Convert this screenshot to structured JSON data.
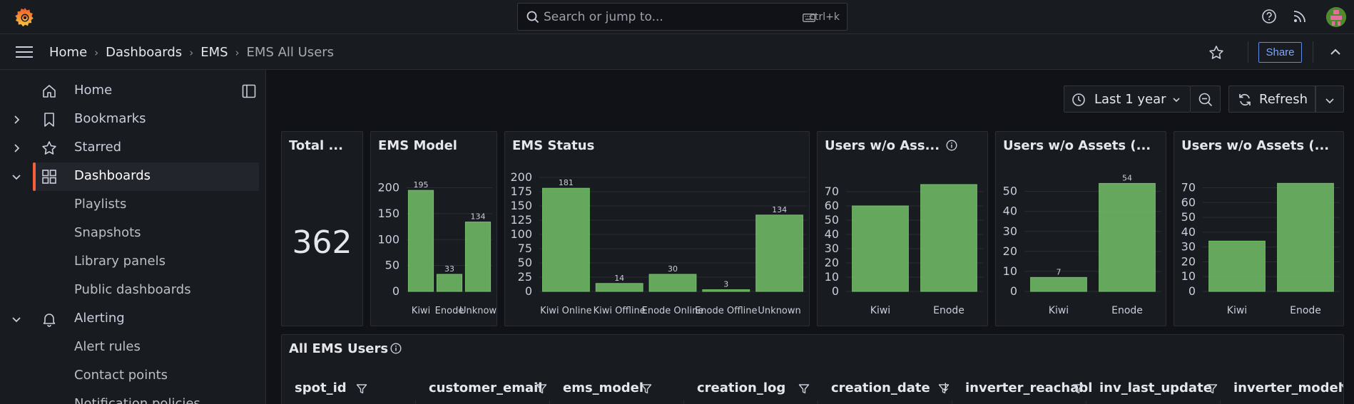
{
  "search": {
    "placeholder": "Search or jump to...",
    "shortcut": "ctrl+k"
  },
  "breadcrumb": [
    "Home",
    "Dashboards",
    "EMS",
    "EMS All Users"
  ],
  "toolbar": {
    "share_label": "Share",
    "time_range": "Last 1 year",
    "refresh_label": "Refresh"
  },
  "sidebar": {
    "items": [
      {
        "label": "Home",
        "icon": "home-icon"
      },
      {
        "label": "Bookmarks",
        "icon": "bookmark-icon"
      },
      {
        "label": "Starred",
        "icon": "star-icon"
      },
      {
        "label": "Dashboards",
        "icon": "grid-icon",
        "active": true
      },
      {
        "label": "Playlists"
      },
      {
        "label": "Snapshots"
      },
      {
        "label": "Library panels"
      },
      {
        "label": "Public dashboards"
      },
      {
        "label": "Alerting",
        "icon": "bell-icon"
      },
      {
        "label": "Alert rules"
      },
      {
        "label": "Contact points"
      },
      {
        "label": "Notification policies"
      }
    ]
  },
  "panels": {
    "total": {
      "title": "Total ...",
      "value": "362"
    },
    "ems_model": {
      "title": "EMS Model"
    },
    "ems_status": {
      "title": "EMS Status"
    },
    "users_wo_1": {
      "title": "Users w/o Ass..."
    },
    "users_wo_2": {
      "title": "Users w/o Assets (..."
    },
    "users_wo_3": {
      "title": "Users w/o Assets (..."
    }
  },
  "chart_data": [
    {
      "type": "bar",
      "title": "EMS Model",
      "categories": [
        "Kiwi",
        "Enode",
        "Unknow"
      ],
      "values": [
        195,
        33,
        134
      ],
      "value_labels": true,
      "ylim": [
        0,
        220
      ],
      "yticks": [
        0,
        50,
        100,
        150,
        200
      ],
      "bar_color": "#73bf69"
    },
    {
      "type": "bar",
      "title": "EMS Status",
      "categories": [
        "Kiwi Online",
        "Kiwi Offline",
        "Enode Online",
        "Enode Offline",
        "Unknown"
      ],
      "values": [
        181,
        14,
        30,
        3,
        134
      ],
      "value_labels": true,
      "ylim": [
        0,
        200
      ],
      "yticks": [
        0,
        25,
        50,
        75,
        100,
        125,
        150,
        175,
        200
      ],
      "bar_color": "#73bf69"
    },
    {
      "type": "bar",
      "title": "Users w/o Ass...",
      "categories": [
        "Kiwi",
        "Enode"
      ],
      "values": [
        60,
        75
      ],
      "value_labels": false,
      "ylim": [
        0,
        80
      ],
      "yticks": [
        0,
        10,
        20,
        30,
        40,
        50,
        60,
        70
      ],
      "bar_color": "#73bf69"
    },
    {
      "type": "bar",
      "title": "Users w/o Assets (...",
      "categories": [
        "Kiwi",
        "Enode"
      ],
      "values": [
        7,
        54
      ],
      "value_labels": true,
      "ylim": [
        0,
        57
      ],
      "yticks": [
        0,
        10,
        20,
        30,
        40,
        50
      ],
      "bar_color": "#73bf69"
    },
    {
      "type": "bar",
      "title": "Users w/o Assets (...",
      "categories": [
        "Kiwi",
        "Enode"
      ],
      "values": [
        34,
        73
      ],
      "value_labels": false,
      "ylim": [
        0,
        77
      ],
      "yticks": [
        0,
        10,
        20,
        30,
        40,
        50,
        60,
        70
      ],
      "bar_color": "#73bf69"
    }
  ],
  "table": {
    "title": "All EMS Users",
    "columns": [
      "spot_id",
      "customer_email",
      "ems_model",
      "creation_log",
      "creation_date",
      "inverter_reachabl",
      "inv_last_update",
      "inverter_model"
    ],
    "sorted_column": "creation_date"
  }
}
